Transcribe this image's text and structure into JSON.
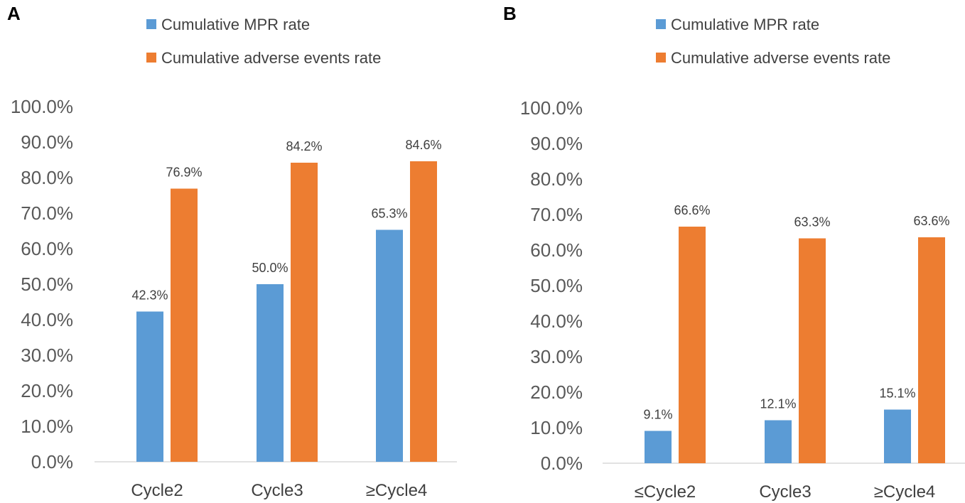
{
  "chart_data": [
    {
      "type": "bar",
      "panel": "A",
      "categories": [
        "Cycle2",
        "Cycle3",
        "≥Cycle4"
      ],
      "series": [
        {
          "name": "Cumulative MPR rate",
          "color": "#5b9bd5",
          "values": [
            42.3,
            50.0,
            65.3
          ],
          "labels": [
            "42.3%",
            "50.0%",
            "65.3%"
          ]
        },
        {
          "name": "Cumulative adverse events rate",
          "color": "#ed7d31",
          "values": [
            76.9,
            84.2,
            84.6
          ],
          "labels": [
            "76.9%",
            "84.2%",
            "84.6%"
          ]
        }
      ],
      "yticks": [
        "0.0%",
        "10.0%",
        "20.0%",
        "30.0%",
        "40.0%",
        "50.0%",
        "60.0%",
        "70.0%",
        "80.0%",
        "90.0%",
        "100.0%"
      ],
      "ylim": [
        0,
        100
      ],
      "legend_position": "top",
      "grid": false
    },
    {
      "type": "bar",
      "panel": "B",
      "categories": [
        "≤Cycle2",
        "Cycle3",
        "≥Cycle4"
      ],
      "series": [
        {
          "name": "Cumulative MPR rate",
          "color": "#5b9bd5",
          "values": [
            9.1,
            12.1,
            15.1
          ],
          "labels": [
            "9.1%",
            "12.1%",
            "15.1%"
          ]
        },
        {
          "name": "Cumulative adverse events rate",
          "color": "#ed7d31",
          "values": [
            66.6,
            63.3,
            63.6
          ],
          "labels": [
            "66.6%",
            "63.3%",
            "63.6%"
          ]
        }
      ],
      "yticks": [
        "0.0%",
        "10.0%",
        "20.0%",
        "30.0%",
        "40.0%",
        "50.0%",
        "60.0%",
        "70.0%",
        "80.0%",
        "90.0%",
        "100.0%"
      ],
      "ylim": [
        0,
        100
      ],
      "legend_position": "top",
      "grid": false
    }
  ]
}
